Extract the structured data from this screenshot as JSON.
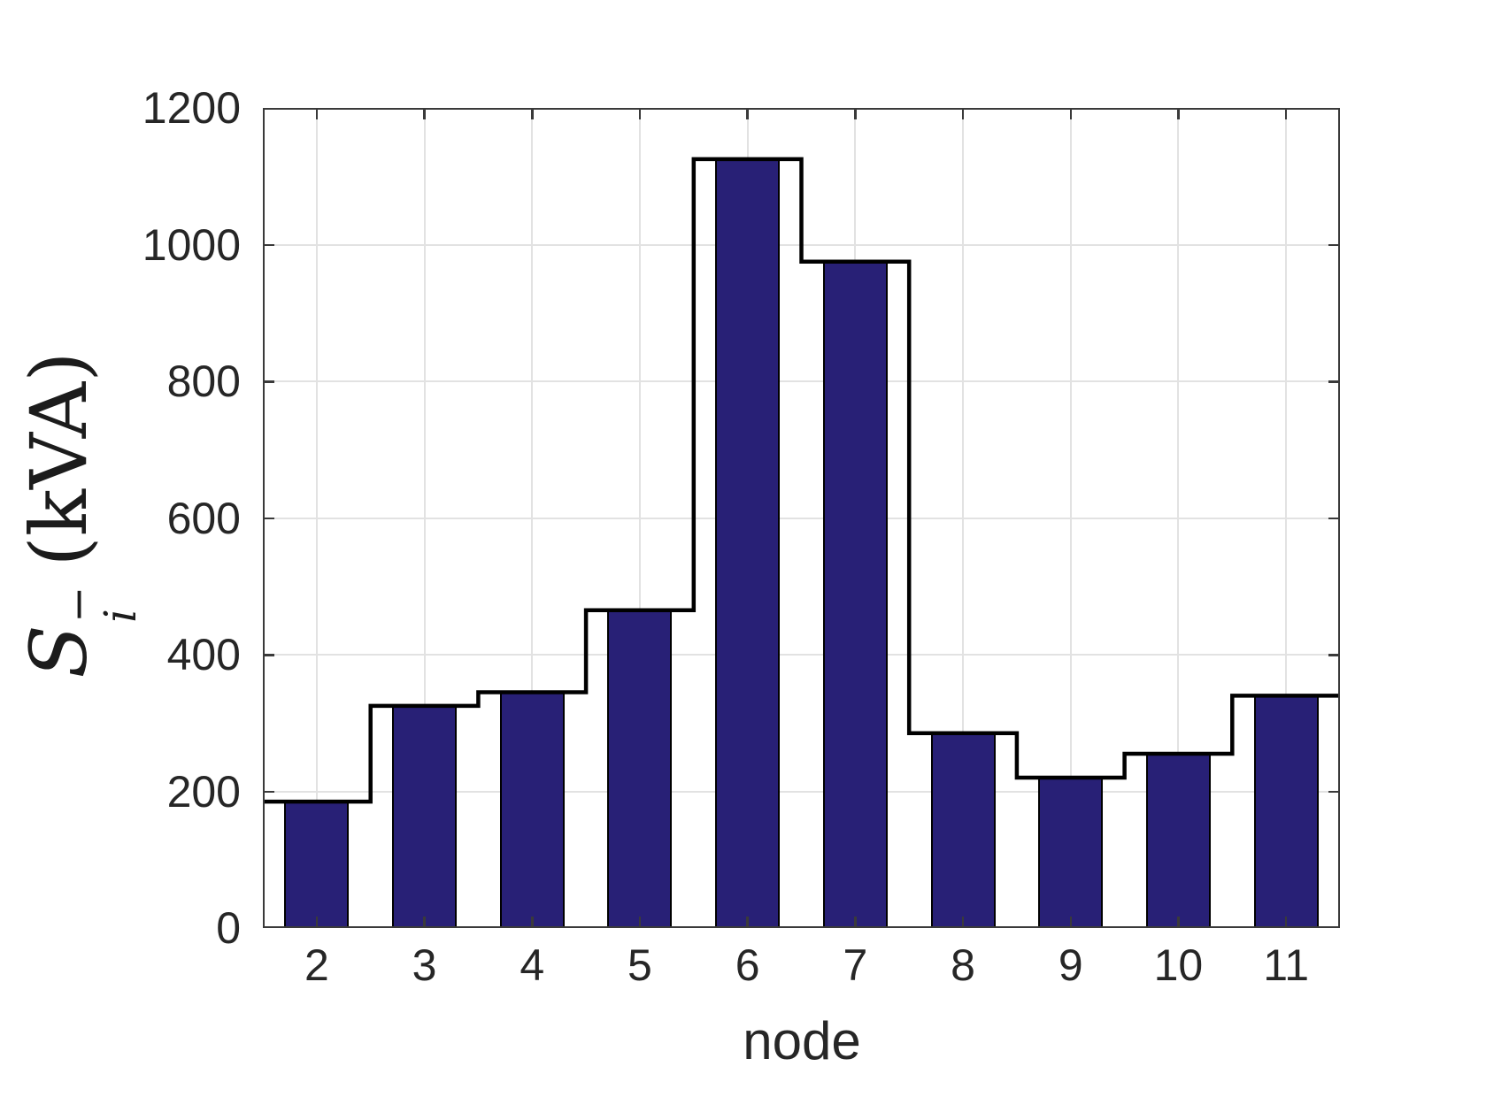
{
  "figure": {
    "background": "#ffffff"
  },
  "axes": {
    "xlabel": "node",
    "ylabel_symbol": "S",
    "ylabel_superscript": "−",
    "ylabel_subscript": "i",
    "ylabel_units": "(kVA)",
    "text_color": "#262626",
    "axis_color": "#3a3a3a",
    "grid_color": "#e2e2e2"
  },
  "chart_data": {
    "type": "bar",
    "title": "",
    "xlabel": "node",
    "ylabel": "S_i^- (kVA)",
    "categories": [
      "2",
      "3",
      "4",
      "5",
      "6",
      "7",
      "8",
      "9",
      "10",
      "11"
    ],
    "values": [
      185,
      325,
      345,
      465,
      1125,
      975,
      285,
      220,
      255,
      340
    ],
    "series_name": "S_i^- (kVA)",
    "overlay": {
      "type": "stairs",
      "description": "black stairstep outline tracing bar tops across full category slots",
      "color": "#000000",
      "line_width": 4.5
    },
    "ylim": [
      0,
      1200
    ],
    "yticks": [
      0,
      200,
      400,
      600,
      800,
      1000,
      1200
    ],
    "xlim": [
      1.5,
      11.5
    ],
    "grid": true,
    "legend": "none",
    "bar_color": "#282076",
    "bar_edge_color": "#000000",
    "bar_width_fraction": 0.6
  }
}
